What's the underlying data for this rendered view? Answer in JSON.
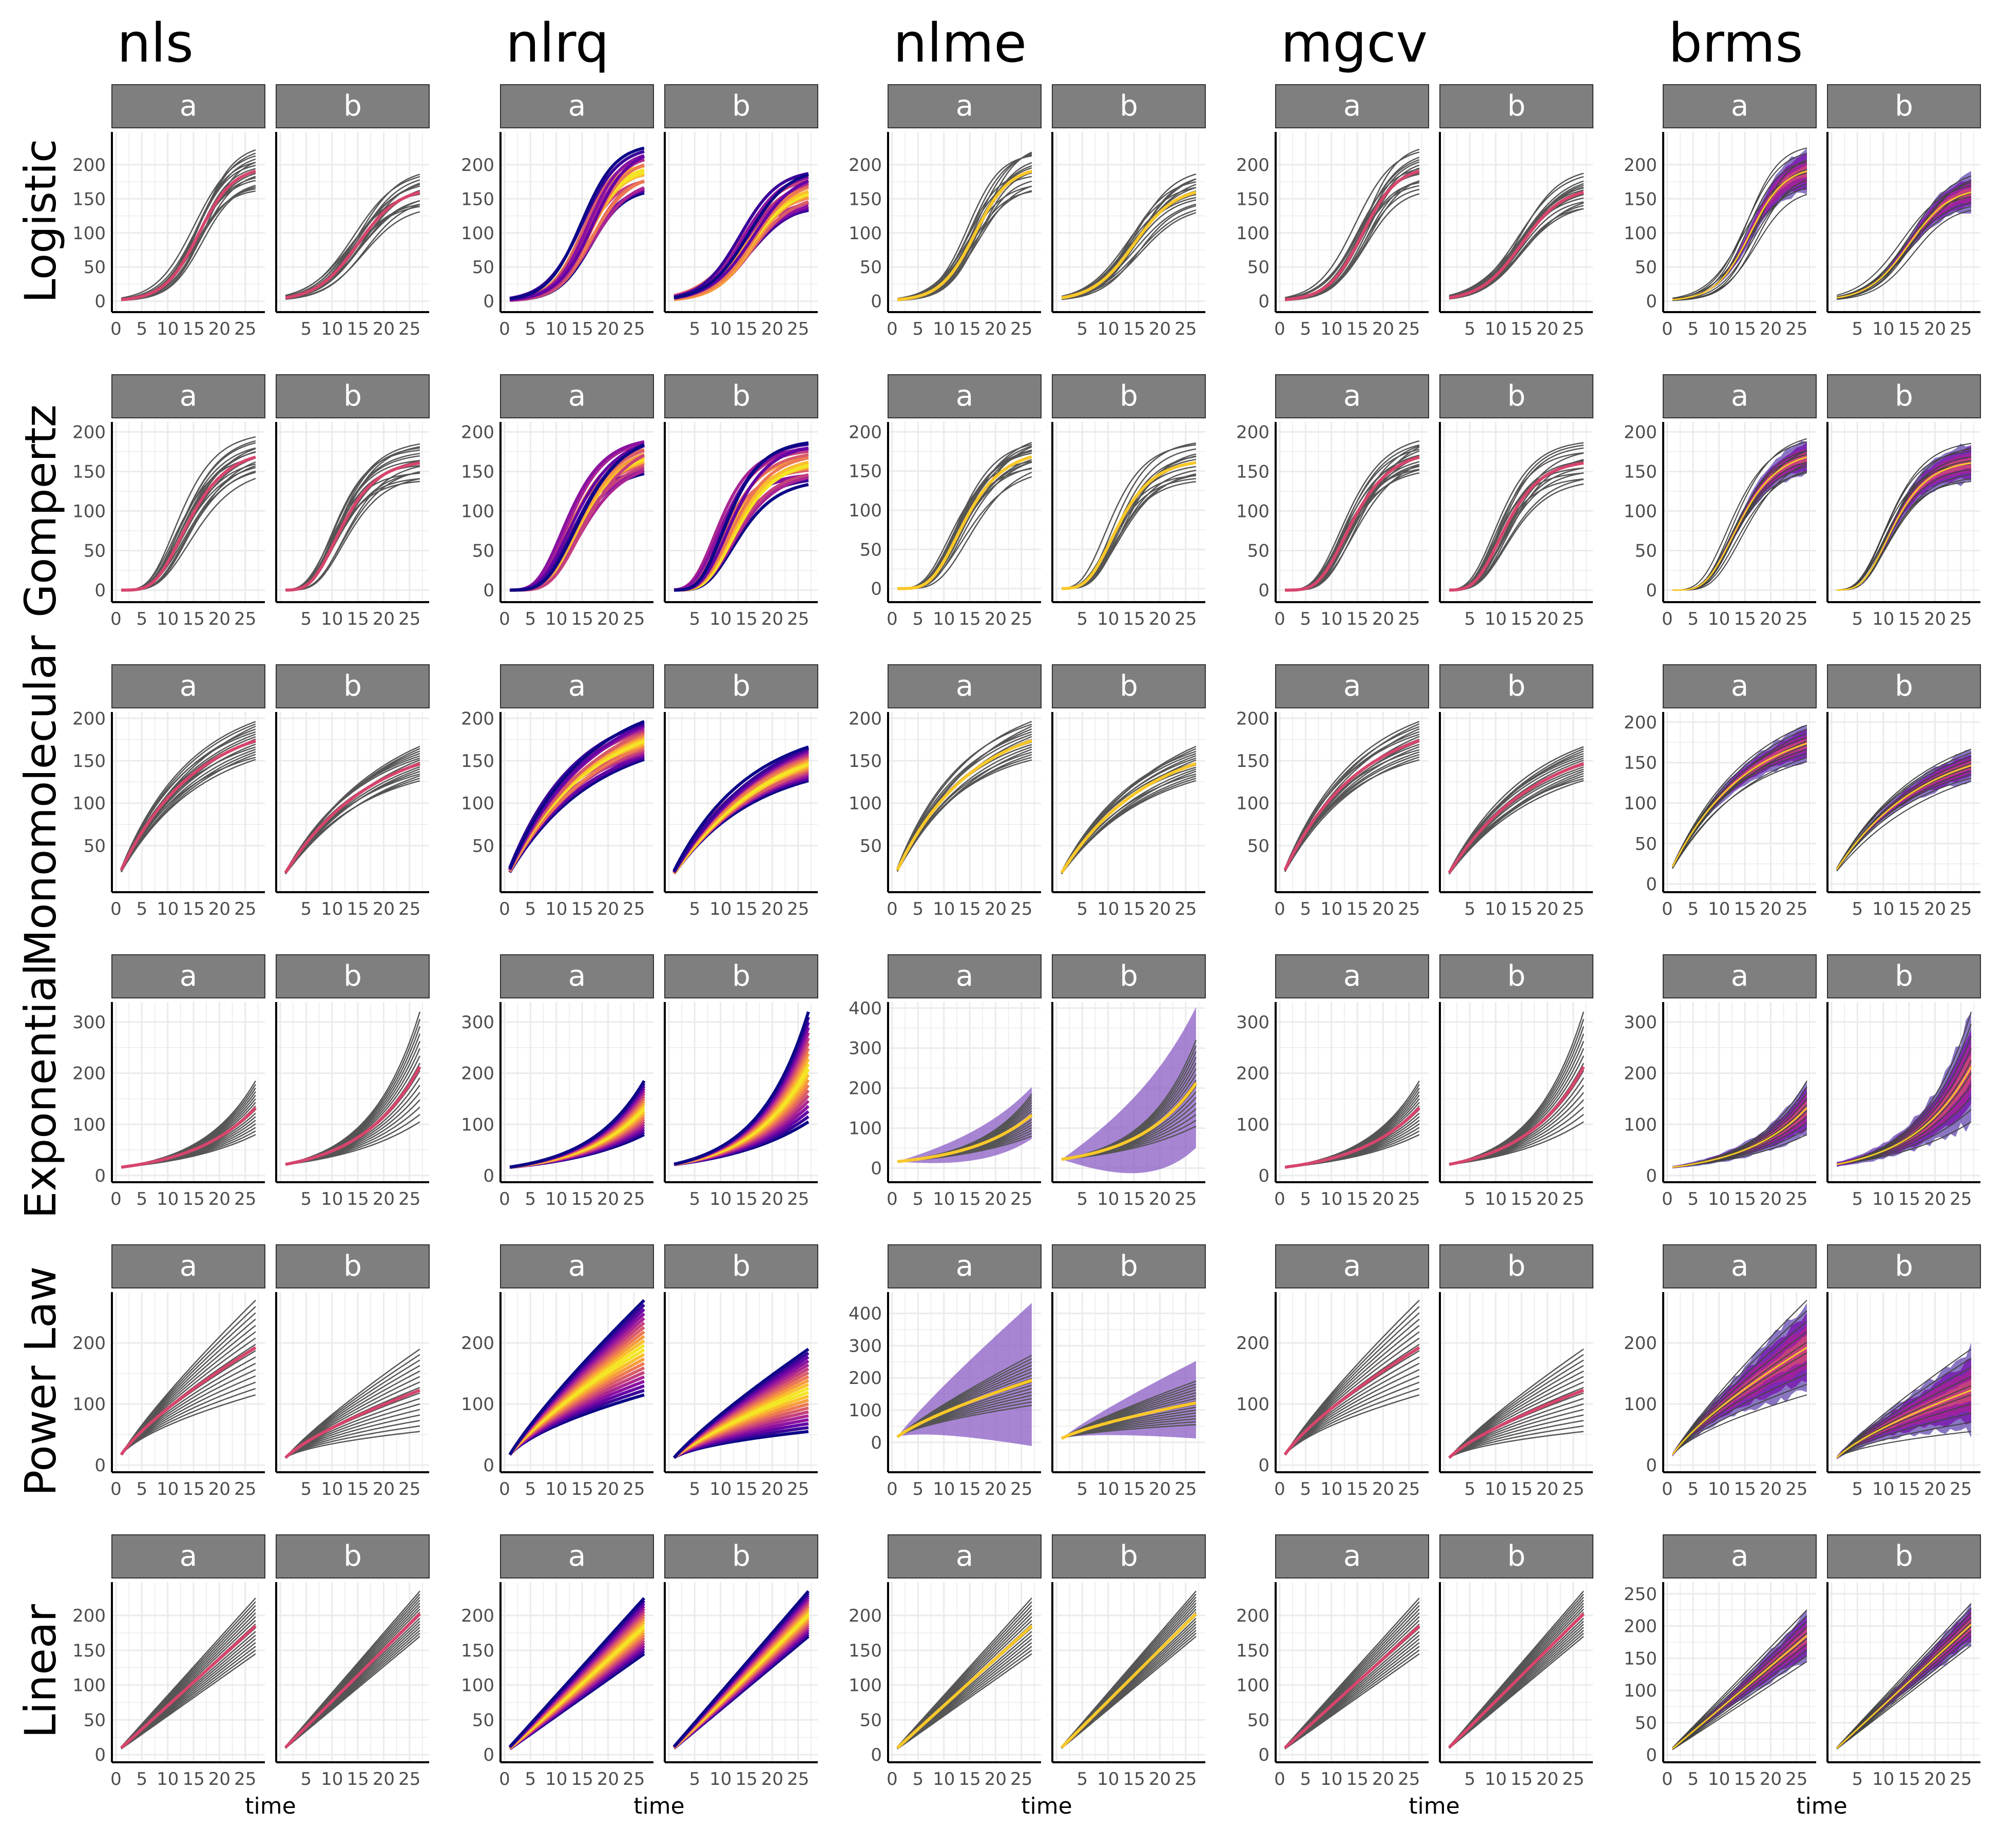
{
  "chart_data": {
    "type": "line",
    "column_titles": [
      "nls",
      "nlrq",
      "nlme",
      "mgcv",
      "brms"
    ],
    "row_titles": [
      "Logistic",
      "Gompertz",
      "Monomolecular",
      "Exponential",
      "Power Law",
      "Linear"
    ],
    "facet_labels": [
      "a",
      "b"
    ],
    "xlabel": "time",
    "xlim": [
      0,
      28
    ],
    "x_ticks": [
      0,
      5,
      10,
      15,
      20,
      25
    ],
    "x_tick_labels": [
      "0",
      "5",
      "10",
      "15",
      "20",
      "25"
    ],
    "y_ticks": {
      "Logistic": [
        0,
        50,
        100,
        150,
        200
      ],
      "Gompertz": [
        0,
        50,
        100,
        150,
        200
      ],
      "Monomolecular": [
        50,
        100,
        150,
        200
      ],
      "Exponential": [
        0,
        100,
        200,
        300
      ],
      "Power Law": [
        0,
        100,
        200
      ],
      "Linear": [
        0,
        50,
        100,
        150,
        200
      ]
    },
    "y_ticks_overrides": {
      "nlme|Exponential": [
        0,
        100,
        200,
        300,
        400
      ],
      "nlme|Power Law": [
        0,
        100,
        200,
        300,
        400
      ],
      "nlme|Gompertz": [
        0,
        50,
        100,
        150,
        200
      ],
      "brms|Monomolecular": [
        0,
        50,
        100,
        150,
        200
      ],
      "brms|Linear": [
        0,
        50,
        100,
        150,
        200,
        250
      ]
    },
    "ylim": {
      "Logistic": [
        -10,
        245
      ],
      "Gompertz": [
        -10,
        210
      ],
      "Monomolecular": [
        0,
        205
      ],
      "Exponential": [
        -5,
        335
      ],
      "Power Law": [
        -5,
        280
      ],
      "Linear": [
        -5,
        245
      ]
    },
    "ylim_overrides": {
      "nlme|Exponential": [
        -25,
        410
      ],
      "nlme|Power Law": [
        -80,
        460
      ],
      "nlme|Gompertz": [
        -12,
        210
      ],
      "brms|Monomolecular": [
        -5,
        210
      ],
      "brms|Linear": [
        -5,
        265
      ]
    },
    "series": [
      {
        "name": "a",
        "model": "Logistic",
        "asymptote": 200,
        "rate": 0.3,
        "midpoint": 16,
        "spread": [
          165,
          230
        ]
      },
      {
        "name": "b",
        "model": "Logistic",
        "asymptote": 160,
        "rate": 0.25,
        "midpoint": 15,
        "spread": [
          140,
          195
        ]
      },
      {
        "name": "a",
        "model": "Gompertz",
        "asymptote": 180,
        "b": 12,
        "c": 0.2,
        "spread": [
          155,
          200
        ]
      },
      {
        "name": "b",
        "model": "Gompertz",
        "asymptote": 160,
        "b": 10,
        "c": 0.22,
        "spread": [
          140,
          190
        ]
      },
      {
        "name": "a",
        "model": "Monomolecular",
        "asymptote": 200,
        "rate": 0.07,
        "spread": [
          150,
          195
        ]
      },
      {
        "name": "b",
        "model": "Monomolecular",
        "asymptote": 170,
        "rate": 0.06,
        "spread": [
          125,
          165
        ]
      },
      {
        "name": "a",
        "model": "Exponential",
        "intercept": 15,
        "rate": 0.08,
        "spread": [
          80,
          185
        ]
      },
      {
        "name": "b",
        "model": "Exponential",
        "intercept": 20,
        "rate": 0.085,
        "spread": [
          105,
          320
        ]
      },
      {
        "name": "a",
        "model": "Power Law",
        "intercept": 17,
        "power": 0.75,
        "spread": [
          115,
          270
        ]
      },
      {
        "name": "b",
        "model": "Power Law",
        "intercept": 12,
        "power": 0.7,
        "spread": [
          55,
          190
        ]
      },
      {
        "name": "a",
        "model": "Linear",
        "slope": 7,
        "intercept": 3,
        "spread": [
          145,
          225
        ]
      },
      {
        "name": "b",
        "model": "Linear",
        "slope": 7.5,
        "intercept": 3,
        "spread": [
          170,
          235
        ]
      }
    ],
    "colors": {
      "individual_lines": "#555555",
      "nls_mean": "#d6456c",
      "nlme_mean": "#f9c82a",
      "nlrq_palette": [
        "#0d0887",
        "#5c01a6",
        "#9c179e",
        "#cc4778",
        "#ed7953",
        "#fdb42f",
        "#f0f921"
      ],
      "brms_band": [
        "#2c0594",
        "#7301a8",
        "#a82296",
        "#cc4778"
      ],
      "nlme_band": "#8a5cc4",
      "strip_bg": "#7f7f7f",
      "grid": "#ebebeb"
    },
    "grid": true,
    "legend": "none"
  }
}
